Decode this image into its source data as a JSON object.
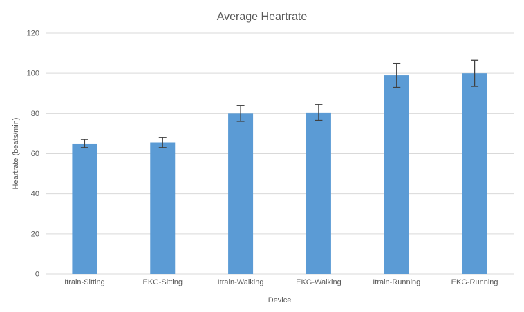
{
  "chart_data": {
    "type": "bar",
    "title": "Average Heartrate",
    "xlabel": "Device",
    "ylabel": "Heartrate (beats/min)",
    "categories": [
      "Itrain-Sitting",
      "EKG-Sitting",
      "Itrain-Walking",
      "EKG-Walking",
      "Itrain-Running",
      "EKG-Running"
    ],
    "values": [
      65,
      65.5,
      80,
      80.5,
      99,
      100
    ],
    "error_bars": [
      2,
      2.5,
      4,
      4,
      6,
      6.5
    ],
    "ylim": [
      0,
      120
    ],
    "ytick_step": 20,
    "grid": true,
    "legend": "none",
    "bar_color": "#5B9BD5",
    "error_color": "#404040",
    "gridline_color": "#D9D9D9",
    "axis_line_color": "#D9D9D9",
    "text_color": "#595959",
    "background_color": "#FFFFFF"
  }
}
